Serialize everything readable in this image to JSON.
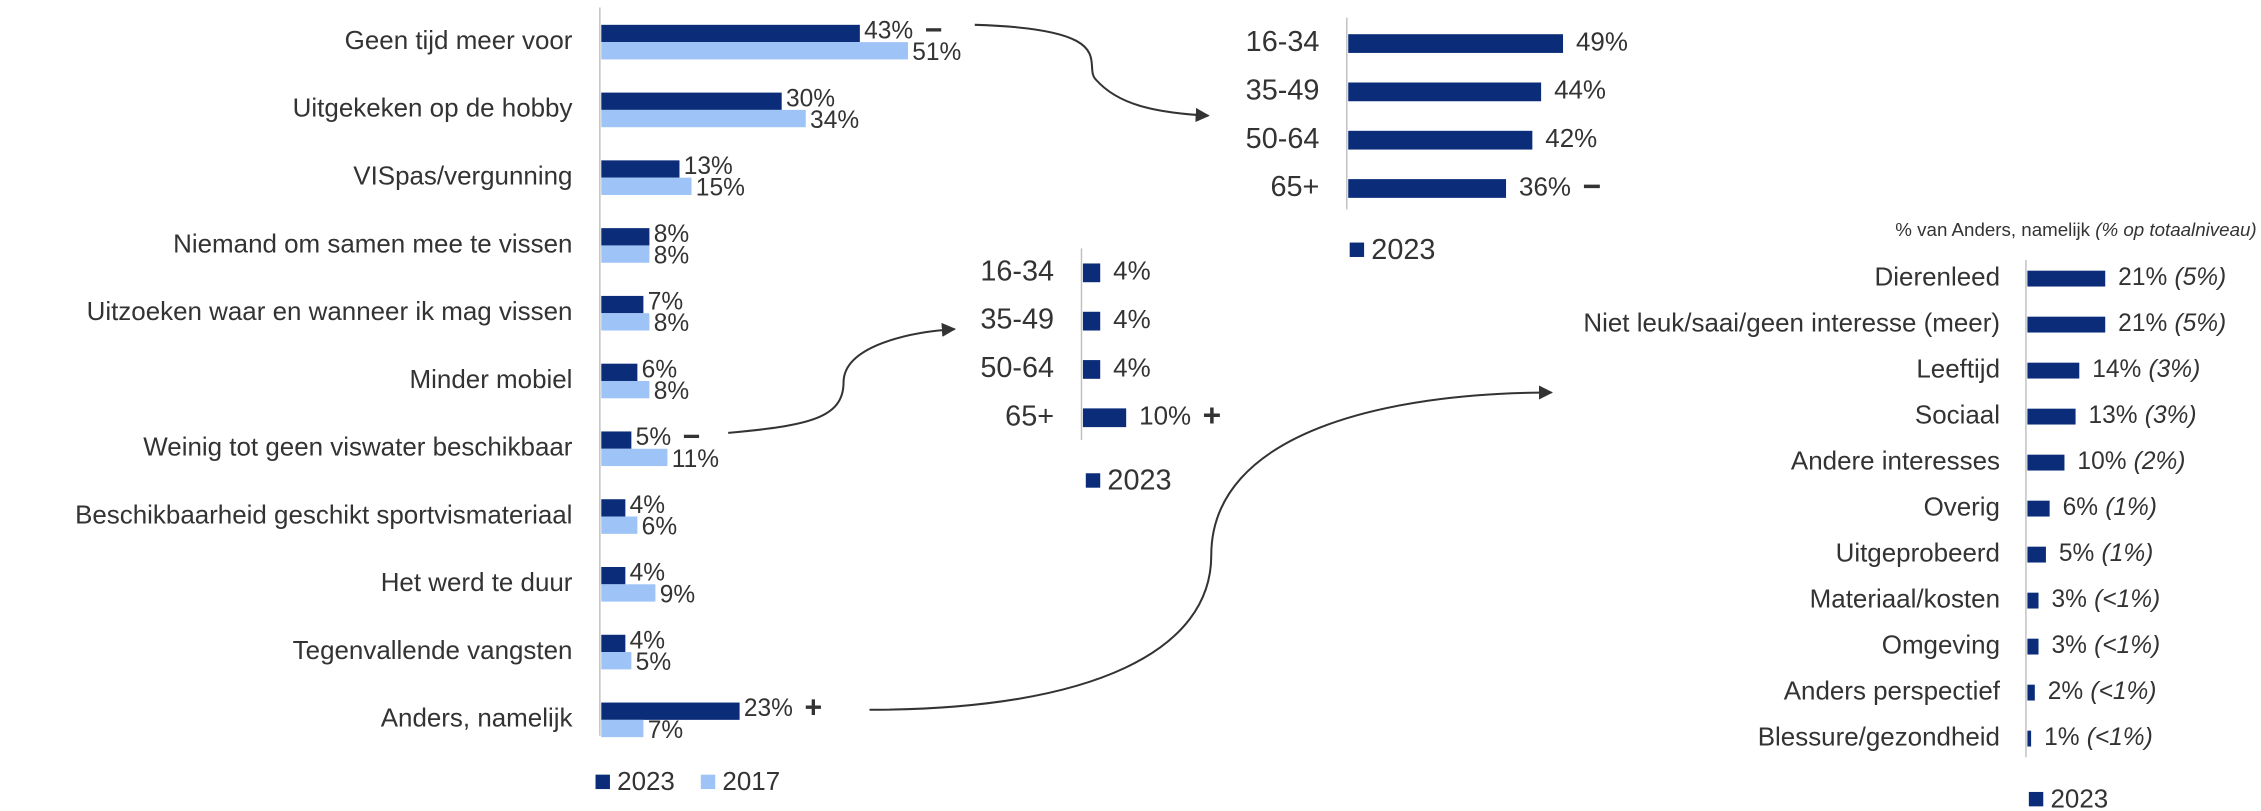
{
  "chart_data": [
    {
      "type": "hbar",
      "categories": [
        "Geen tijd meer voor",
        "Uitgekeken op de hobby",
        "VISpas/vergunning",
        "Niemand om samen mee te vissen",
        "Uitzoeken waar en wanneer ik mag vissen",
        "Minder mobiel",
        "Weinig tot geen viswater beschikbaar",
        "Beschikbaarheid geschikt sportvismateriaal",
        "Het werd te duur",
        "Tegenvallende vangsten",
        "Anders, namelijk"
      ],
      "series": [
        {
          "name": "2023",
          "color": "#0b2d79",
          "values": [
            43,
            30,
            13,
            8,
            7,
            6,
            5,
            4,
            4,
            4,
            23
          ],
          "value_labels": [
            "43%",
            "30%",
            "13%",
            "8%",
            "7%",
            "6%",
            "5%",
            "4%",
            "4%",
            "4%",
            "23%"
          ],
          "markers": [
            "−",
            null,
            null,
            null,
            null,
            null,
            "−",
            null,
            null,
            null,
            "+"
          ]
        },
        {
          "name": "2017",
          "color": "#9dc3f7",
          "values": [
            51,
            34,
            15,
            8,
            8,
            8,
            11,
            6,
            9,
            5,
            7
          ],
          "value_labels": [
            "51%",
            "34%",
            "15%",
            "8%",
            "8%",
            "8%",
            "11%",
            "6%",
            "9%",
            "5%",
            "7%"
          ]
        }
      ]
    },
    {
      "type": "hbar",
      "categories": [
        "16-34",
        "35-49",
        "50-64",
        "65+"
      ],
      "series": [
        {
          "name": "2023",
          "color": "#0b2d79",
          "values": [
            49,
            44,
            42,
            36
          ],
          "value_labels": [
            "49%",
            "44%",
            "42%",
            "36%"
          ],
          "markers": [
            null,
            null,
            null,
            "−"
          ]
        }
      ]
    },
    {
      "type": "hbar",
      "categories": [
        "16-34",
        "35-49",
        "50-64",
        "65+"
      ],
      "series": [
        {
          "name": "2023",
          "color": "#0b2d79",
          "values": [
            4,
            4,
            4,
            10
          ],
          "value_labels": [
            "4%",
            "4%",
            "4%",
            "10%"
          ],
          "markers": [
            null,
            null,
            null,
            "+"
          ]
        }
      ]
    },
    {
      "type": "hbar",
      "title": "% van Anders, namelijk",
      "subtitle": "(% op totaalniveau)",
      "categories": [
        "Dierenleed",
        "Niet leuk/saai/geen interesse (meer)",
        "Leeftijd",
        "Sociaal",
        "Andere interesses",
        "Overig",
        "Uitgeprobeerd",
        "Materiaal/kosten",
        "Omgeving",
        "Anders perspectief",
        "Blessure/gezondheid"
      ],
      "series": [
        {
          "name": "2023",
          "color": "#0b2d79",
          "values": [
            21,
            21,
            14,
            13,
            10,
            6,
            5,
            3,
            3,
            2,
            1
          ],
          "value_labels": [
            "21%",
            "21%",
            "14%",
            "13%",
            "10%",
            "6%",
            "5%",
            "3%",
            "3%",
            "2%",
            "1%"
          ],
          "notes": [
            "(5%)",
            "(5%)",
            "(3%)",
            "(3%)",
            "(2%)",
            "(1%)",
            "(1%)",
            "(<1%)",
            "(<1%)",
            "(<1%)",
            "(<1%)"
          ]
        }
      ]
    }
  ]
}
